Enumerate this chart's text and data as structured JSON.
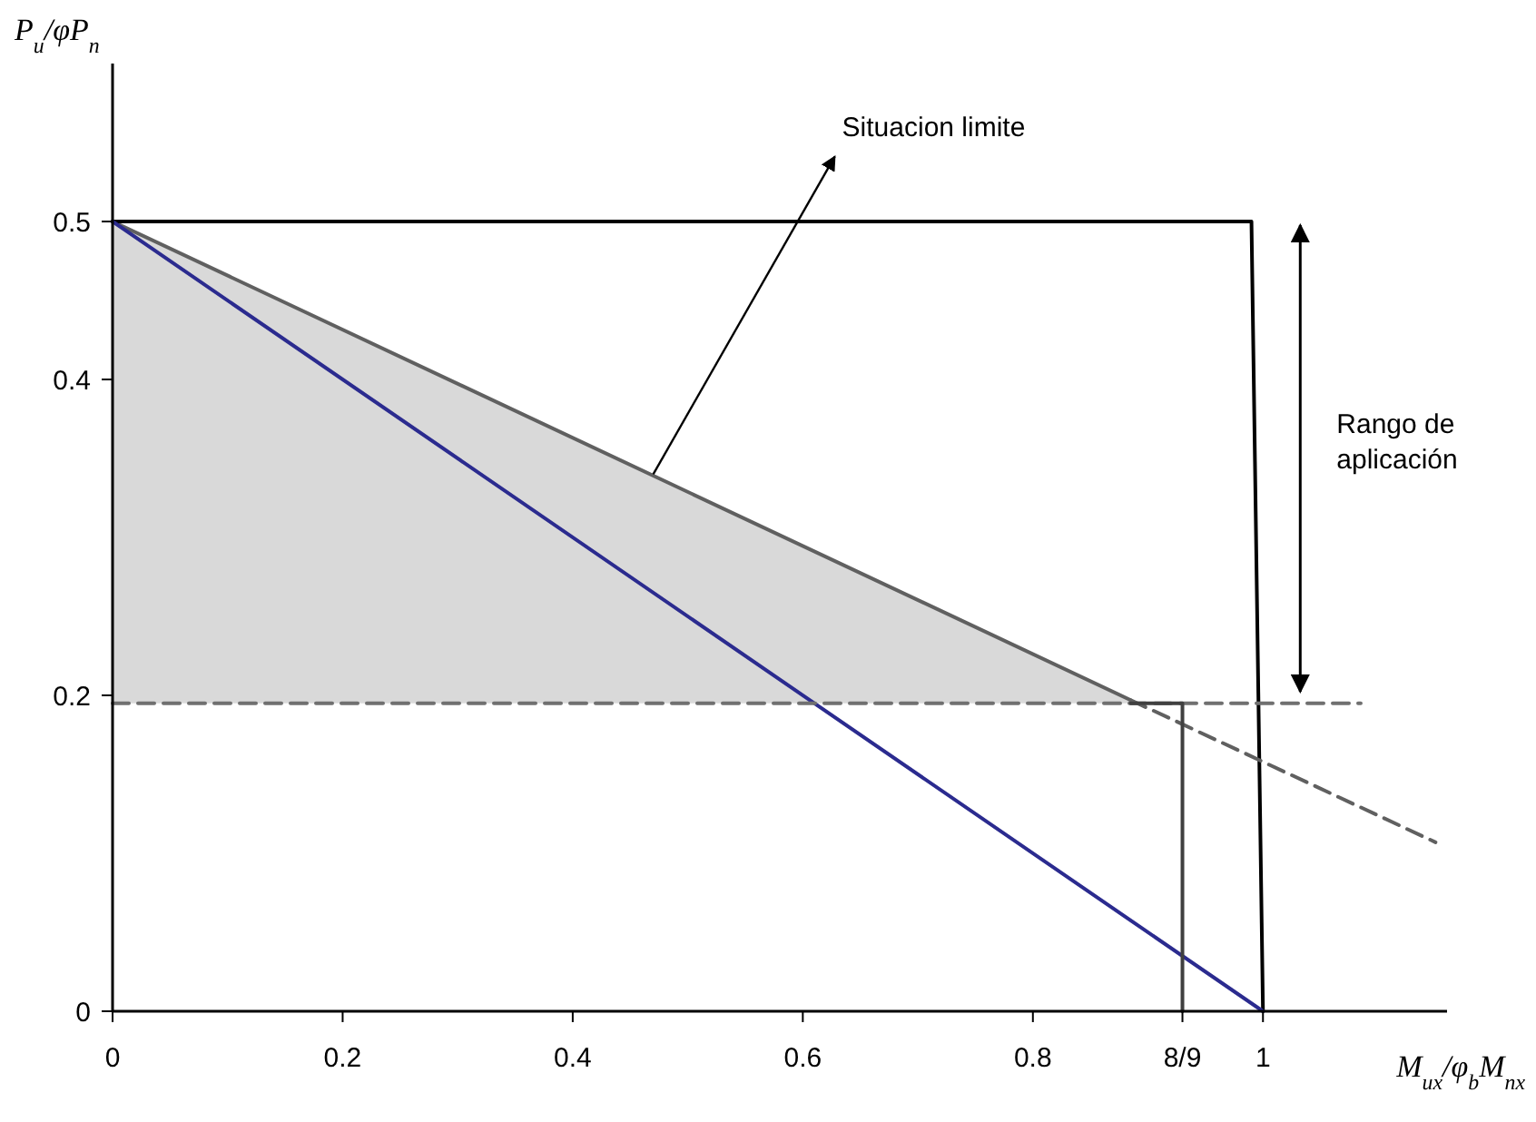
{
  "chart_data": {
    "type": "line",
    "xlabel": "M$_{ux}$/φ$_{b}$M$_{nx}$",
    "ylabel": "P$_{u}$/φP$_{n}$",
    "xlim": [
      0,
      1.16
    ],
    "ylim": [
      0,
      0.6
    ],
    "xticks": [
      0,
      0.2,
      0.4,
      0.6,
      0.8,
      {
        "value": 0.93,
        "label": "8/9"
      },
      1
    ],
    "yticks": [
      0,
      0.2,
      0.4,
      0.5
    ],
    "grid": false,
    "marker": "none",
    "series": [
      {
        "color": "#000000",
        "x": [
          0,
          0.99,
          1.0
        ],
        "values": [
          0.5,
          0.5,
          0
        ]
      },
      {
        "color": "#2b2b8f",
        "x": [
          0,
          1.0
        ],
        "values": [
          0.5,
          0
        ]
      },
      {
        "color": "#606060",
        "x": [
          0,
          0.885
        ],
        "values": [
          0.5,
          0.197
        ],
        "lower": [
          0.195,
          0.195
        ],
        "upper": [
          0.5,
          0.197
        ]
      },
      {
        "color": "#606060",
        "line_style": "dashed",
        "x": [
          0.885,
          1.15
        ],
        "values": [
          0.197,
          0.107
        ]
      },
      {
        "color": "#707070",
        "line_style": "dashed",
        "x": [
          0,
          1.085
        ],
        "values": [
          0.195,
          0.195
        ]
      },
      {
        "color": "#404040",
        "x": [
          0.885,
          0.93,
          0.93
        ],
        "values": [
          0.195,
          0.195,
          0
        ]
      }
    ],
    "annotations": [
      {
        "text": "Situacion limite",
        "x": 0.47,
        "y": 0.34
      },
      "Rango de aplicación"
    ]
  }
}
